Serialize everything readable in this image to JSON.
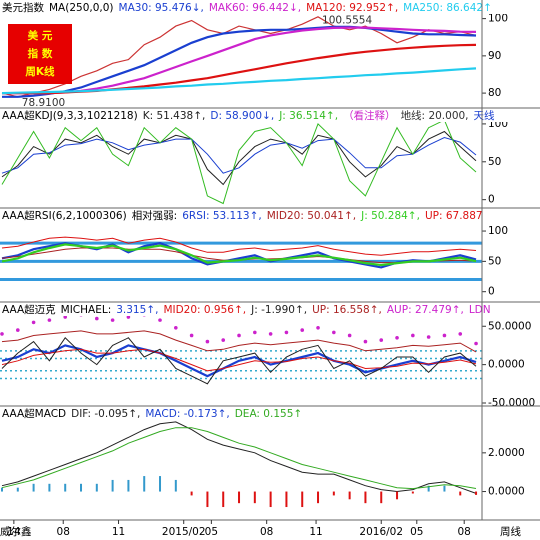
{
  "chart_data": [
    {
      "type": "line",
      "title": "美元指数",
      "subtitle": "MA(250,0,0)",
      "badge": [
        "美  元",
        "指  数",
        "周K线"
      ],
      "marker": "?",
      "x": [
        0,
        4,
        8,
        12,
        16,
        20,
        24,
        28,
        32,
        36,
        40,
        44,
        48,
        52,
        56,
        60,
        64,
        68,
        72,
        76,
        80,
        84,
        88,
        92,
        96,
        100,
        104,
        108,
        112,
        116,
        120
      ],
      "xlim": [
        0,
        121
      ],
      "ylim": [
        76,
        105
      ],
      "yticks": [
        80,
        90,
        100
      ],
      "price": {
        "color": "#cc3333",
        "values": [
          80,
          79,
          80,
          81,
          82.5,
          84.5,
          86,
          88,
          89,
          93,
          95,
          98,
          99.5,
          97,
          96,
          98,
          97,
          96,
          97,
          98.5,
          100.5,
          98,
          97,
          98,
          96,
          93.5,
          95,
          97,
          96,
          96.5,
          95.5
        ]
      },
      "annotations": [
        {
          "text": "100.5554",
          "x": 80,
          "y": 100.5554
        },
        {
          "text": "78.9100",
          "x": 4,
          "y": 78.91
        }
      ],
      "series": [
        {
          "name": "MA30: 95.476↓,",
          "color": "#1a3fd0",
          "style": "thick",
          "values": [
            79,
            79,
            79.3,
            79.8,
            80.5,
            81.5,
            83,
            84.5,
            86,
            87.5,
            89.5,
            91.5,
            93.5,
            95,
            96,
            96.5,
            96.8,
            97,
            97,
            97.2,
            97.5,
            97.8,
            97.8,
            97.5,
            97,
            96.5,
            96,
            95.8,
            95.8,
            95.6,
            95.476
          ]
        },
        {
          "name": "MAK60: 96.442↓,",
          "color": "#cc22cc",
          "style": "thick",
          "values": [
            80,
            80,
            80,
            80,
            80.2,
            80.6,
            81.2,
            82,
            83,
            84,
            85.5,
            87,
            88.5,
            90,
            91.5,
            93,
            94.5,
            95.5,
            96.2,
            96.8,
            97.2,
            97.5,
            97.6,
            97.6,
            97.4,
            97.2,
            97,
            96.8,
            96.7,
            96.5,
            96.442
          ]
        },
        {
          "name": "MA120: 92.952↑,",
          "color": "#dd1111",
          "style": "thick",
          "values": [
            80,
            80,
            80,
            80,
            80.2,
            80.4,
            80.6,
            81,
            81.4,
            81.8,
            82.3,
            82.8,
            83.4,
            84,
            84.8,
            85.6,
            86.4,
            87.2,
            88,
            88.7,
            89.4,
            90,
            90.6,
            91.1,
            91.5,
            91.9,
            92.2,
            92.5,
            92.7,
            92.85,
            92.952
          ]
        },
        {
          "name": "MA250: 86.642↑",
          "color": "#22ccee",
          "style": "thick",
          "values": [
            80,
            80.1,
            80.2,
            80.3,
            80.4,
            80.5,
            80.7,
            80.9,
            81.1,
            81.3,
            81.5,
            81.8,
            82,
            82.3,
            82.5,
            82.8,
            83,
            83.3,
            83.5,
            83.8,
            84,
            84.3,
            84.5,
            84.8,
            85,
            85.3,
            85.5,
            85.8,
            86.1,
            86.4,
            86.642
          ]
        }
      ]
    },
    {
      "type": "line",
      "title": "AAA超KDJ(9,3,3,1021218)",
      "x": [
        0,
        4,
        8,
        12,
        16,
        20,
        24,
        28,
        32,
        36,
        40,
        44,
        48,
        52,
        56,
        60,
        64,
        68,
        72,
        76,
        80,
        84,
        88,
        92,
        96,
        100,
        104,
        108,
        112,
        116,
        120
      ],
      "xlim": [
        0,
        121
      ],
      "ylim": [
        -11,
        121
      ],
      "yticks": [
        0,
        50,
        100
      ],
      "header_extra": [
        {
          "text": "（看注释）",
          "color": "#cc22cc"
        },
        {
          "text": "地线: 20.000,",
          "color": "#333333"
        },
        {
          "text": "天线",
          "color": "#1a3fd0"
        }
      ],
      "series": [
        {
          "name": "K: 51.438↑,",
          "color": "#222222",
          "style": "thin",
          "values": [
            30,
            45,
            70,
            60,
            80,
            75,
            85,
            70,
            60,
            80,
            75,
            85,
            80,
            40,
            20,
            50,
            70,
            80,
            75,
            60,
            85,
            80,
            50,
            30,
            45,
            70,
            60,
            80,
            90,
            70,
            51.438
          ]
        },
        {
          "name": "D: 58.900↓,",
          "color": "#1a3fd0",
          "style": "thin",
          "values": [
            35,
            42,
            60,
            62,
            72,
            74,
            80,
            75,
            66,
            72,
            75,
            80,
            80,
            60,
            35,
            42,
            60,
            72,
            75,
            68,
            78,
            80,
            62,
            42,
            42,
            58,
            60,
            72,
            82,
            76,
            58.9
          ]
        },
        {
          "name": "J: 36.514↑,",
          "color": "#33bb22",
          "style": "thin",
          "values": [
            20,
            55,
            90,
            55,
            95,
            78,
            95,
            60,
            45,
            95,
            75,
            95,
            80,
            5,
            -5,
            65,
            90,
            95,
            75,
            45,
            100,
            80,
            25,
            5,
            50,
            95,
            60,
            95,
            105,
            55,
            36.514
          ]
        }
      ]
    },
    {
      "type": "line",
      "title": "AAA超RSI(6,2,1000306)",
      "subtitle": "相对强弱:",
      "x": [
        0,
        4,
        8,
        12,
        16,
        20,
        24,
        28,
        32,
        36,
        40,
        44,
        48,
        52,
        56,
        60,
        64,
        68,
        72,
        76,
        80,
        84,
        88,
        92,
        96,
        100,
        104,
        108,
        112,
        116,
        120
      ],
      "xlim": [
        0,
        121
      ],
      "ylim": [
        -17,
        138
      ],
      "yticks": [
        0,
        50,
        100
      ],
      "hlines": {
        "values": [
          80,
          50,
          20
        ],
        "color": "#3399dd",
        "style": "thick"
      },
      "series": [
        {
          "name": "6RSI: 53.113↑,",
          "color": "#1a3fd0",
          "style": "thick",
          "values": [
            55,
            60,
            70,
            75,
            80,
            75,
            70,
            78,
            65,
            75,
            80,
            70,
            55,
            45,
            50,
            55,
            60,
            50,
            55,
            60,
            65,
            55,
            50,
            45,
            40,
            48,
            52,
            50,
            55,
            60,
            53.113
          ]
        },
        {
          "name": "MID20: 50.041↑,",
          "color": "#aa2222",
          "style": "thin",
          "values": [
            55,
            58,
            62,
            66,
            70,
            72,
            72,
            72,
            70,
            70,
            70,
            66,
            60,
            55,
            52,
            52,
            54,
            54,
            55,
            56,
            58,
            56,
            53,
            50,
            48,
            48,
            49,
            50,
            51,
            52,
            50.041
          ]
        },
        {
          "name": "J: 50.284↑,",
          "color": "#33cc22",
          "style": "thick",
          "values": [
            50,
            55,
            65,
            72,
            78,
            75,
            72,
            76,
            68,
            72,
            76,
            70,
            60,
            48,
            50,
            52,
            56,
            52,
            54,
            57,
            60,
            56,
            52,
            47,
            44,
            47,
            50,
            50,
            53,
            56,
            50.284
          ]
        },
        {
          "name": "UP: 67.887",
          "color": "#dd1111",
          "style": "thin",
          "values": [
            72,
            75,
            82,
            88,
            90,
            88,
            85,
            88,
            80,
            85,
            88,
            82,
            72,
            65,
            65,
            70,
            72,
            68,
            70,
            72,
            76,
            70,
            66,
            62,
            60,
            63,
            66,
            66,
            68,
            70,
            67.887
          ]
        }
      ]
    },
    {
      "type": "line",
      "title": "AAA超迈克",
      "subtitle": "MICHAEL:",
      "x": [
        0,
        4,
        8,
        12,
        16,
        20,
        24,
        28,
        32,
        36,
        40,
        44,
        48,
        52,
        56,
        60,
        64,
        68,
        72,
        76,
        80,
        84,
        88,
        92,
        96,
        100,
        104,
        108,
        112,
        116,
        120
      ],
      "xlim": [
        0,
        121
      ],
      "ylim": [
        -53.9,
        81.6
      ],
      "yticks": [
        {
          "value": -50,
          "label": "-50.0000"
        },
        {
          "value": 0,
          "label": "0.0000"
        },
        {
          "value": 50,
          "label": "50.0000"
        }
      ],
      "hlines": {
        "values": [
          18,
          8,
          -8,
          -18
        ],
        "color": "#33aacc",
        "style": "dotted"
      },
      "header_extra": [
        {
          "text": "LDN",
          "color": "#cc22cc"
        }
      ],
      "series": [
        {
          "name": "3.315↑,",
          "color": "#1a3fd0",
          "style": "thick",
          "values": [
            5,
            10,
            20,
            15,
            25,
            20,
            10,
            15,
            25,
            20,
            15,
            5,
            -5,
            -15,
            -5,
            5,
            10,
            0,
            5,
            10,
            15,
            5,
            0,
            -10,
            -5,
            0,
            5,
            0,
            5,
            10,
            3.315
          ]
        },
        {
          "name": "MID20: 0.956↑,",
          "color": "#dd1111",
          "style": "thin",
          "values": [
            0,
            5,
            12,
            15,
            18,
            20,
            15,
            15,
            18,
            20,
            15,
            8,
            0,
            -8,
            -5,
            0,
            5,
            3,
            4,
            8,
            10,
            5,
            2,
            -5,
            -4,
            -2,
            2,
            1,
            3,
            6,
            0.956
          ]
        },
        {
          "name": "J: -1.990↑,",
          "color": "#222222",
          "style": "thin",
          "values": [
            -5,
            15,
            30,
            5,
            35,
            15,
            0,
            25,
            35,
            10,
            20,
            -5,
            -15,
            -25,
            5,
            10,
            15,
            -10,
            10,
            20,
            25,
            -5,
            5,
            -15,
            -5,
            10,
            10,
            -10,
            10,
            15,
            -1.99
          ]
        },
        {
          "name": "UP: 16.558↑,",
          "color": "#aa2222",
          "style": "thin",
          "values": [
            30,
            32,
            38,
            40,
            42,
            44,
            40,
            40,
            42,
            44,
            40,
            32,
            25,
            18,
            20,
            25,
            28,
            26,
            28,
            30,
            32,
            28,
            25,
            18,
            20,
            22,
            25,
            24,
            26,
            28,
            16.558
          ]
        },
        {
          "name": "AUP: 27.479↑,",
          "color": "#cc22cc",
          "style": "dotted",
          "values": [
            40,
            45,
            55,
            58,
            62,
            65,
            60,
            58,
            62,
            65,
            58,
            48,
            38,
            30,
            32,
            38,
            42,
            40,
            42,
            45,
            48,
            42,
            38,
            30,
            32,
            35,
            38,
            36,
            38,
            40,
            27.479
          ]
        }
      ]
    },
    {
      "type": "line",
      "title": "AAA超MACD",
      "x": [
        0,
        4,
        8,
        12,
        16,
        20,
        24,
        28,
        32,
        36,
        40,
        44,
        48,
        52,
        56,
        60,
        64,
        68,
        72,
        76,
        80,
        84,
        88,
        92,
        96,
        100,
        104,
        108,
        112,
        116,
        120
      ],
      "xlim": [
        0,
        121
      ],
      "ylim": [
        -1.47,
        4.42
      ],
      "yticks": [
        {
          "value": 0,
          "label": "0.0000"
        },
        {
          "value": 2,
          "label": "2.0000"
        }
      ],
      "xticks": [
        {
          "value": 3,
          "label": "14"
        },
        {
          "value": 15.5,
          "label": "08"
        },
        {
          "value": 29.5,
          "label": "11"
        },
        {
          "value": 46,
          "label": "2015/02"
        },
        {
          "value": 53,
          "label": "05"
        },
        {
          "value": 67,
          "label": "08"
        },
        {
          "value": 79.5,
          "label": "11"
        },
        {
          "value": 96,
          "label": "2016/02"
        },
        {
          "value": 105,
          "label": "05"
        },
        {
          "value": 117,
          "label": "08"
        }
      ],
      "source": "威尔鑫",
      "x_unit_label": "周线",
      "up_color": "#3399cc",
      "down_color": "#dd1111",
      "series": [
        {
          "name": "DIF: -0.095↑,",
          "color": "#222222",
          "style": "thin",
          "values": [
            0.3,
            0.5,
            0.8,
            1.1,
            1.4,
            1.7,
            2.0,
            2.4,
            2.8,
            3.2,
            3.5,
            3.6,
            3.2,
            2.7,
            2.4,
            2.2,
            2.0,
            1.6,
            1.3,
            1.0,
            0.9,
            0.9,
            0.6,
            0.3,
            0.1,
            0.0,
            0.1,
            0.4,
            0.5,
            0.2,
            -0.095
          ]
        },
        {
          "name": "MACD: -0.173↑,",
          "color": "#1a3fd0",
          "style": "bar",
          "values": [
            0.2,
            0.2,
            0.4,
            0.4,
            0.4,
            0.4,
            0.4,
            0.6,
            0.6,
            0.8,
            0.8,
            0.6,
            -0.2,
            -0.8,
            -0.8,
            -0.6,
            -0.6,
            -0.8,
            -0.8,
            -0.8,
            -0.6,
            -0.2,
            -0.4,
            -0.6,
            -0.6,
            -0.4,
            -0.1,
            0.3,
            0.3,
            -0.2,
            -0.173
          ]
        },
        {
          "name": "DEA: 0.155↑",
          "color": "#33aa22",
          "style": "thin",
          "values": [
            0.2,
            0.4,
            0.6,
            0.9,
            1.2,
            1.5,
            1.8,
            2.1,
            2.5,
            2.8,
            3.1,
            3.3,
            3.3,
            3.1,
            2.8,
            2.5,
            2.3,
            2.0,
            1.7,
            1.4,
            1.2,
            1.0,
            0.8,
            0.6,
            0.4,
            0.2,
            0.15,
            0.25,
            0.35,
            0.3,
            0.155
          ]
        }
      ]
    }
  ]
}
